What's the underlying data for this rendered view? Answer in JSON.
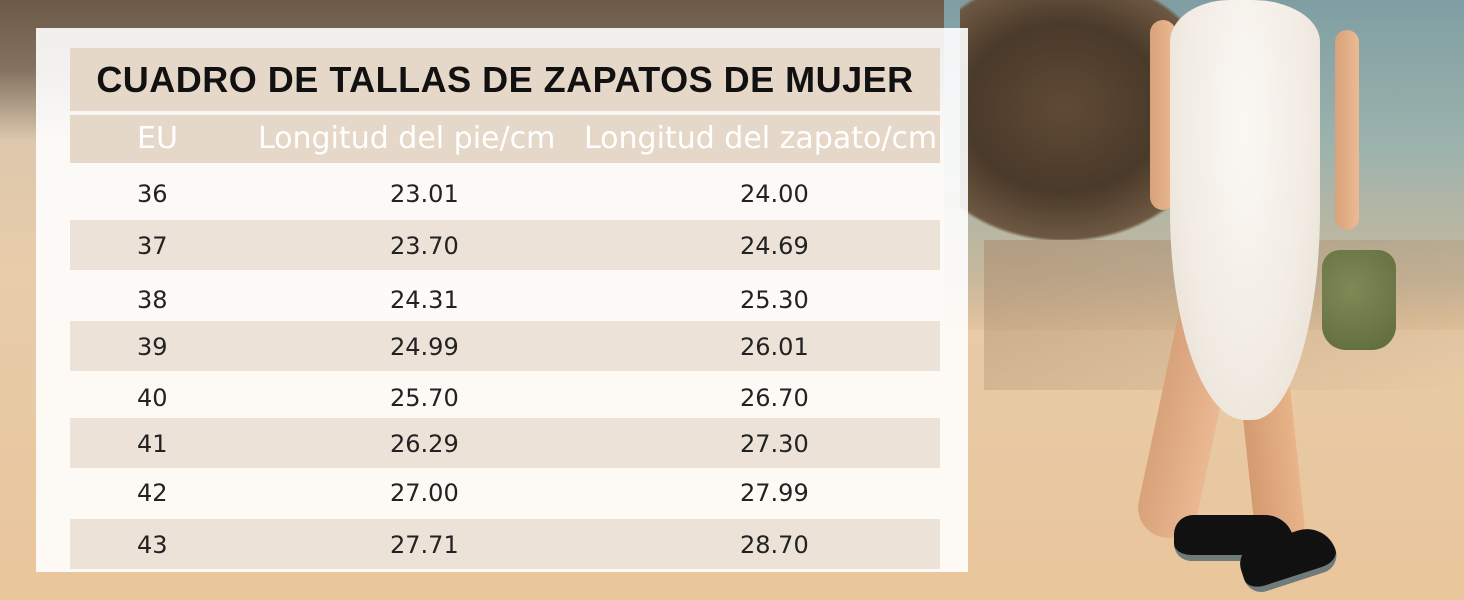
{
  "title": "CUADRO DE TALLAS DE ZAPATOS DE MUJER",
  "columns": [
    "EU",
    "Longitud del pie/cm",
    "Longitud del zapato/cm"
  ],
  "rows": [
    [
      "36",
      "23.01",
      "24.00"
    ],
    [
      "37",
      "23.70",
      "24.69"
    ],
    [
      "38",
      "24.31",
      "25.30"
    ],
    [
      "39",
      "24.99",
      "26.01"
    ],
    [
      "40",
      "25.70",
      "26.70"
    ],
    [
      "41",
      "26.29",
      "27.30"
    ],
    [
      "42",
      "27.00",
      "27.99"
    ],
    [
      "43",
      "27.71",
      "28.70"
    ]
  ],
  "colors": {
    "header_band": "#e6d8c8",
    "shaded_row": "#ede2d7",
    "header_text": "#ffffff",
    "title_text": "#111111"
  }
}
